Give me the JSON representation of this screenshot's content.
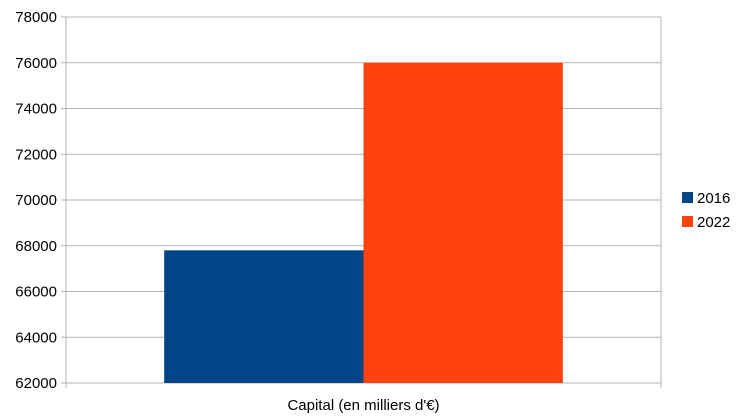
{
  "chart_data": {
    "type": "bar",
    "categories": [
      "Capital (en milliers d'€)"
    ],
    "series": [
      {
        "name": "2016",
        "values": [
          67800
        ],
        "color": "#004586"
      },
      {
        "name": "2022",
        "values": [
          76000
        ],
        "color": "#ff420e"
      }
    ],
    "ylim": [
      62000,
      78000
    ],
    "yticks": [
      62000,
      64000,
      66000,
      68000,
      70000,
      72000,
      74000,
      76000,
      78000
    ],
    "grid": true,
    "legend_position": "right",
    "gridline_color": "#b3b3b3"
  }
}
